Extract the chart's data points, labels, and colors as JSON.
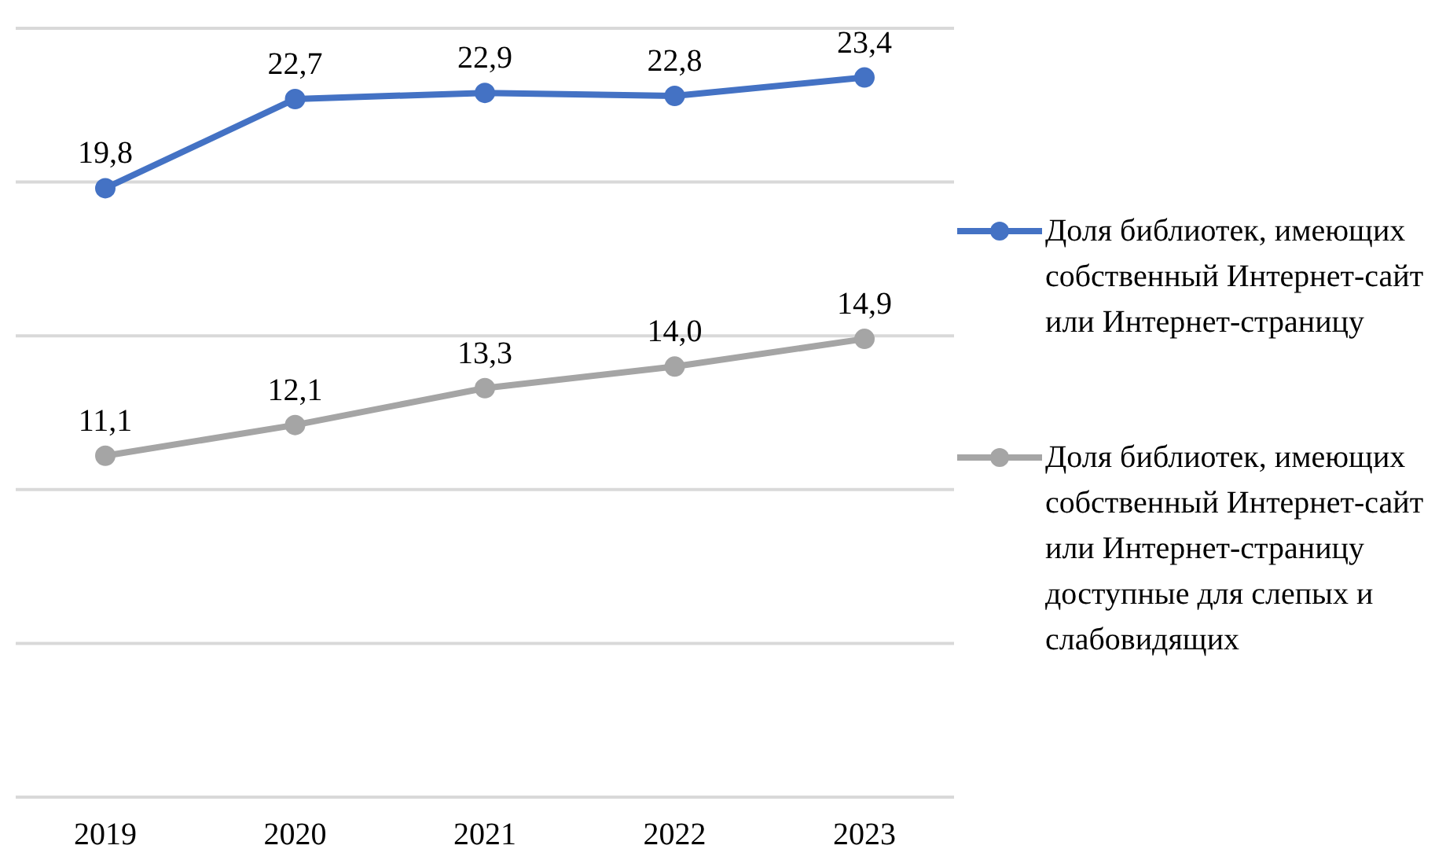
{
  "chart_data": {
    "type": "line",
    "categories": [
      "2019",
      "2020",
      "2021",
      "2022",
      "2023"
    ],
    "series": [
      {
        "name": "Доля библиотек, имеющих собственный Интернет-сайт или Интернет-страницу",
        "color": "#4472c4",
        "values": [
          19.8,
          22.7,
          22.9,
          22.8,
          23.4
        ],
        "value_labels": [
          "19,8",
          "22,7",
          "22,9",
          "22,8",
          "23,4"
        ]
      },
      {
        "name": "Доля библиотек, имеющих собственный Интернет-сайт или Интернет-страницу доступные для слепых и слабовидящих",
        "color": "#a5a5a5",
        "values": [
          11.1,
          12.1,
          13.3,
          14.0,
          14.9
        ],
        "value_labels": [
          "11,1",
          "12,1",
          "13,3",
          "14,0",
          "14,9"
        ]
      }
    ],
    "ylim": [
      0,
      25
    ],
    "yticks": [
      {
        "value": 0,
        "label": null
      },
      {
        "value": 5,
        "label": null
      },
      {
        "value": 10,
        "label": null
      },
      {
        "value": 15,
        "label": null
      },
      {
        "value": 20,
        "label": null
      },
      {
        "value": 25,
        "label": null
      }
    ],
    "tick_labels": "x",
    "grid": "y",
    "legend": "right",
    "marker": "circle",
    "line_style": "solid"
  }
}
